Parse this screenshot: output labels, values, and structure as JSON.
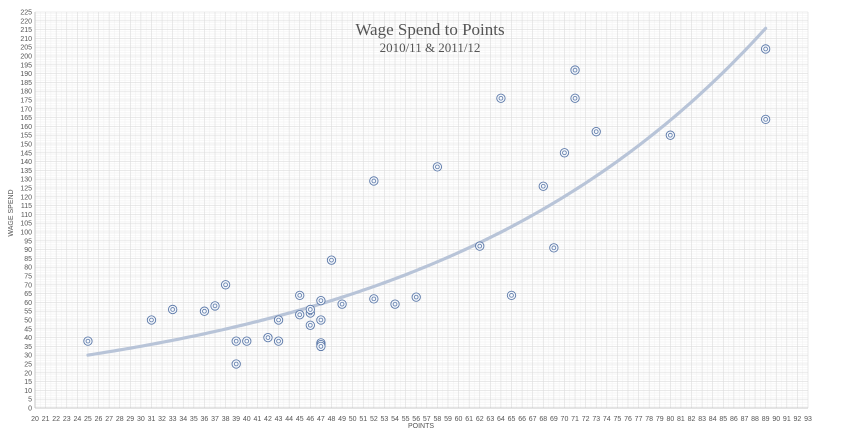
{
  "chart_data": {
    "type": "scatter",
    "title": "Wage Spend to Points",
    "subtitle": "2010/11 & 2011/12",
    "xlabel": "POINTS",
    "ylabel": "WAGE SPEND",
    "xlim": [
      20,
      93
    ],
    "ylim": [
      0,
      225
    ],
    "x_tick_step": 1,
    "y_tick_step": 5,
    "grid": true,
    "trendline": {
      "type": "exponential",
      "x_range": [
        25,
        89
      ],
      "color": "#b8c4d8"
    },
    "marker_color": "#5b78a8",
    "series": [
      {
        "points": [
          {
            "x": 25,
            "y": 38
          },
          {
            "x": 31,
            "y": 50
          },
          {
            "x": 33,
            "y": 56
          },
          {
            "x": 36,
            "y": 55
          },
          {
            "x": 37,
            "y": 58
          },
          {
            "x": 38,
            "y": 70
          },
          {
            "x": 39,
            "y": 38
          },
          {
            "x": 39,
            "y": 25
          },
          {
            "x": 40,
            "y": 38
          },
          {
            "x": 42,
            "y": 40
          },
          {
            "x": 43,
            "y": 38
          },
          {
            "x": 43,
            "y": 50
          },
          {
            "x": 45,
            "y": 64
          },
          {
            "x": 45,
            "y": 53
          },
          {
            "x": 46,
            "y": 54
          },
          {
            "x": 46,
            "y": 56
          },
          {
            "x": 46,
            "y": 47
          },
          {
            "x": 47,
            "y": 61
          },
          {
            "x": 47,
            "y": 50
          },
          {
            "x": 47,
            "y": 37
          },
          {
            "x": 47,
            "y": 36
          },
          {
            "x": 47,
            "y": 35
          },
          {
            "x": 48,
            "y": 84
          },
          {
            "x": 49,
            "y": 59
          },
          {
            "x": 52,
            "y": 129
          },
          {
            "x": 52,
            "y": 62
          },
          {
            "x": 54,
            "y": 59
          },
          {
            "x": 56,
            "y": 63
          },
          {
            "x": 58,
            "y": 137
          },
          {
            "x": 62,
            "y": 92
          },
          {
            "x": 64,
            "y": 176
          },
          {
            "x": 65,
            "y": 64
          },
          {
            "x": 68,
            "y": 126
          },
          {
            "x": 69,
            "y": 91
          },
          {
            "x": 70,
            "y": 145
          },
          {
            "x": 71,
            "y": 192
          },
          {
            "x": 71,
            "y": 176
          },
          {
            "x": 73,
            "y": 157
          },
          {
            "x": 80,
            "y": 155
          },
          {
            "x": 89,
            "y": 204
          },
          {
            "x": 89,
            "y": 164
          }
        ]
      }
    ]
  }
}
